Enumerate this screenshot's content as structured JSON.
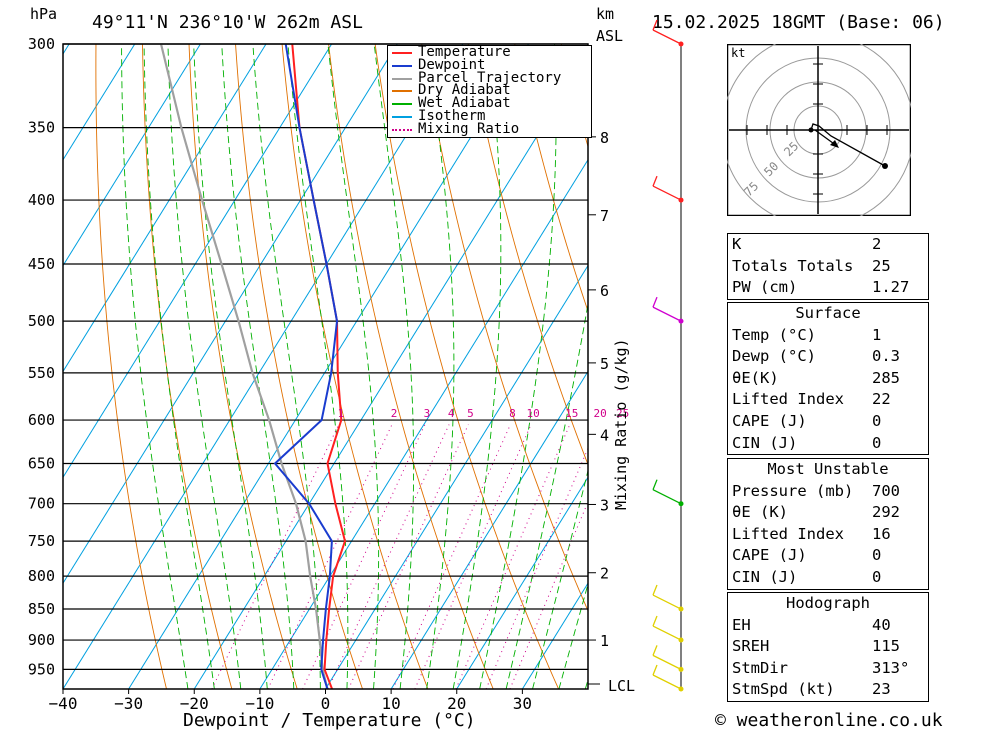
{
  "header": {
    "pressure_unit": "hPa",
    "location": "49°11'N  236°10'W  262m  ASL",
    "height_unit_top": "km",
    "height_unit_bottom": "ASL",
    "datetime": "15.02.2025  18GMT  (Base: 06)"
  },
  "footer": {
    "xlabel": "Dewpoint / Temperature (°C)",
    "copyright": "© weatheronline.co.uk"
  },
  "mixing_ratio_label": "Mixing Ratio (g/kg)",
  "lcl_label": "LCL",
  "colors": {
    "temperature": "#ff2020",
    "dewpoint": "#1a3ccf",
    "parcel": "#a0a0a0",
    "dry_adiabat": "#e07000",
    "wet_adiabat": "#00b000",
    "isotherm": "#00a0e0",
    "mixing_ratio": "#d0008a"
  },
  "chart_data": {
    "type": "line",
    "legend": [
      "Temperature",
      "Dewpoint",
      "Parcel Trajectory",
      "Dry Adiabat",
      "Wet Adiabat",
      "Isotherm",
      "Mixing Ratio"
    ],
    "legend_position": "top-right",
    "y_axis": {
      "pressure_ticks": [
        300,
        350,
        400,
        450,
        500,
        550,
        600,
        650,
        700,
        750,
        800,
        850,
        900,
        950
      ],
      "scale": "log",
      "range": [
        300,
        985
      ]
    },
    "x_axis": {
      "ticks": [
        -40,
        -30,
        -20,
        -10,
        0,
        10,
        20,
        30
      ],
      "range": [
        -40,
        40
      ]
    },
    "height_km_ticks": [
      1,
      2,
      3,
      4,
      5,
      6,
      7,
      8
    ],
    "mixing_ratio_labels": [
      "1",
      "2",
      "3",
      "4",
      "5",
      "8",
      "10",
      "15",
      "20",
      "25"
    ],
    "mixing_ratio_values": [
      1,
      2,
      3,
      4,
      5,
      8,
      10,
      15,
      20,
      25
    ],
    "temperature": {
      "p": [
        985,
        950,
        900,
        850,
        800,
        750,
        700,
        650,
        600,
        550,
        500,
        450,
        400,
        350,
        300
      ],
      "t": [
        1,
        -2,
        -4.5,
        -7,
        -9.5,
        -11,
        -16,
        -21,
        -23,
        -28,
        -33,
        -40,
        -48,
        -57,
        -66
      ]
    },
    "dewpoint": {
      "p": [
        985,
        950,
        900,
        850,
        800,
        750,
        700,
        650,
        600,
        550,
        500,
        450,
        400,
        350,
        300
      ],
      "t": [
        0.3,
        -2.5,
        -5,
        -7.5,
        -10,
        -13,
        -20,
        -29,
        -26,
        -29,
        -33,
        -40,
        -48,
        -57,
        -67
      ]
    },
    "parcel": {
      "p": [
        985,
        950,
        900,
        850,
        800,
        750,
        700,
        650,
        600,
        550,
        500,
        450,
        400,
        350,
        300
      ],
      "t": [
        0.3,
        -2.3,
        -5.5,
        -9,
        -13,
        -17,
        -22,
        -28,
        -34,
        -41,
        -48,
        -56,
        -65,
        -75,
        -86
      ]
    },
    "wind_barbs_pressure": [
      300,
      400,
      500,
      700,
      850,
      900,
      950,
      985
    ]
  },
  "hodograph": {
    "unit": "kt",
    "ring_labels": [
      "25",
      "50",
      "75"
    ]
  },
  "indices": [
    {
      "k": "K",
      "v": "2"
    },
    {
      "k": "Totals Totals",
      "v": "25"
    },
    {
      "k": "PW (cm)",
      "v": "1.27"
    }
  ],
  "surface": {
    "title": "Surface",
    "rows": [
      {
        "k": "Temp (°C)",
        "v": "1"
      },
      {
        "k": "Dewp (°C)",
        "v": "0.3"
      },
      {
        "k": "θE(K)",
        "v": "285"
      },
      {
        "k": "Lifted Index",
        "v": "22"
      },
      {
        "k": "CAPE (J)",
        "v": "0"
      },
      {
        "k": "CIN (J)",
        "v": "0"
      }
    ]
  },
  "most_unstable": {
    "title": "Most Unstable",
    "rows": [
      {
        "k": "Pressure (mb)",
        "v": "700"
      },
      {
        "k": "θE (K)",
        "v": "292"
      },
      {
        "k": "Lifted Index",
        "v": "16"
      },
      {
        "k": "CAPE (J)",
        "v": "0"
      },
      {
        "k": "CIN (J)",
        "v": "0"
      }
    ]
  },
  "hodograph_box": {
    "title": "Hodograph",
    "rows": [
      {
        "k": "EH",
        "v": "40"
      },
      {
        "k": "SREH",
        "v": "115"
      },
      {
        "k": "StmDir",
        "v": "313°"
      },
      {
        "k": "StmSpd (kt)",
        "v": "23"
      }
    ]
  }
}
